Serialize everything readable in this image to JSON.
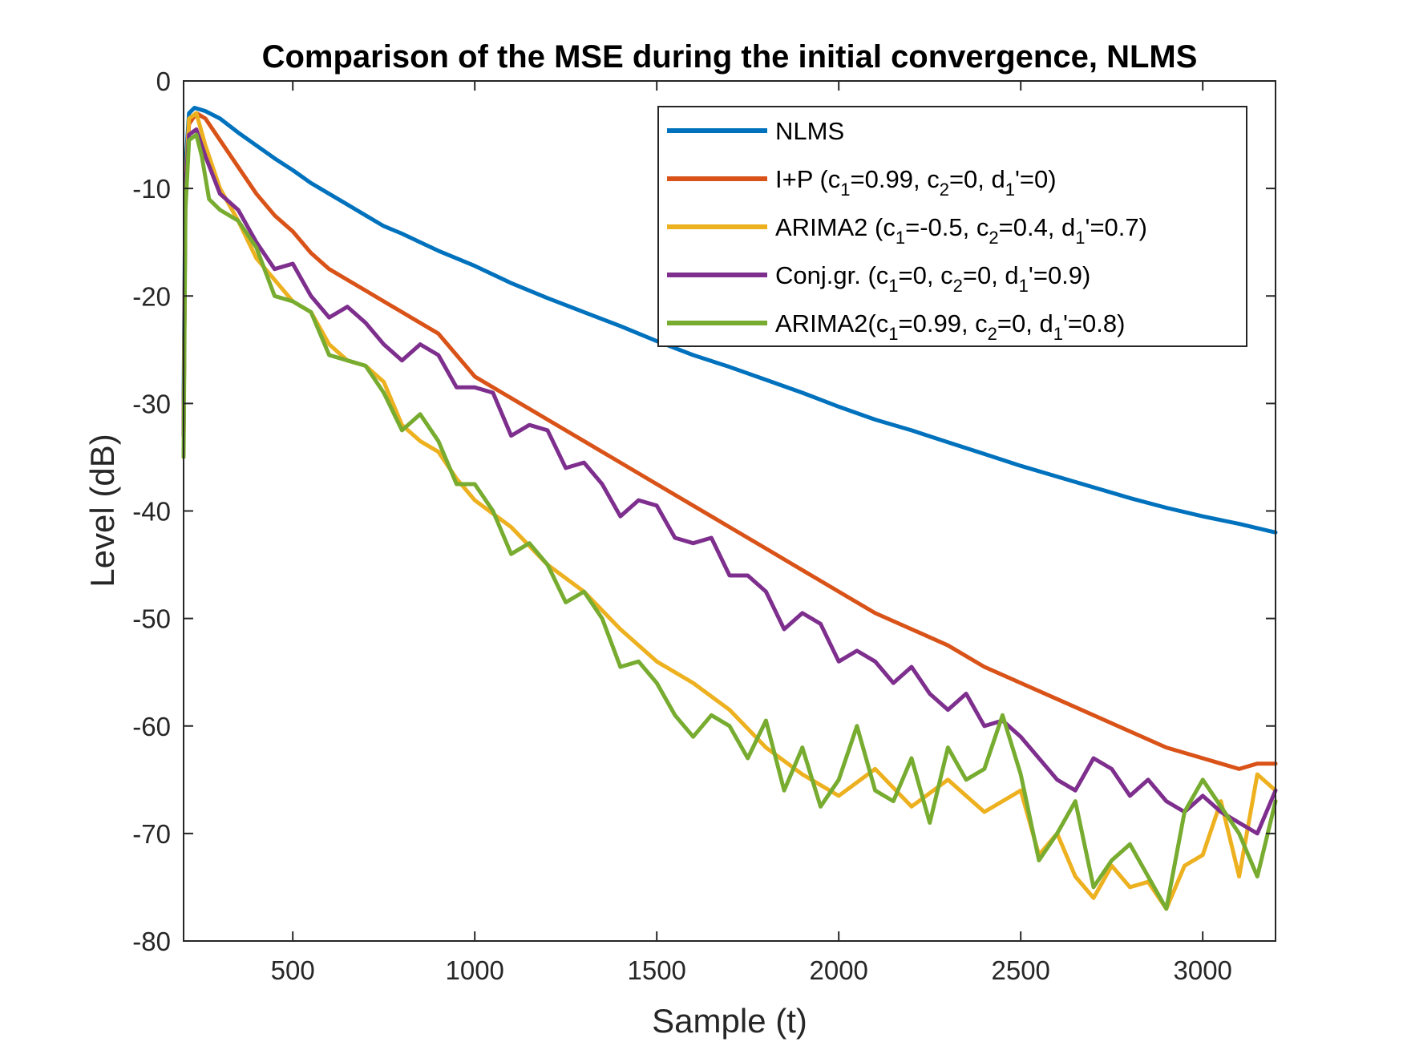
{
  "chart_data": {
    "type": "line",
    "title": "Comparison of the MSE during the initial convergence, NLMS",
    "xlabel": "Sample (t)",
    "ylabel": "Level (dB)",
    "xlim": [
      200,
      3200
    ],
    "ylim": [
      -80,
      0
    ],
    "xticks": [
      500,
      1000,
      1500,
      2000,
      2500,
      3000
    ],
    "xtick_labels": [
      "500",
      "1000",
      "1500",
      "2000",
      "2500",
      "3000"
    ],
    "yticks": [
      0,
      -10,
      -20,
      -30,
      -40,
      -50,
      -60,
      -70,
      -80
    ],
    "ytick_labels": [
      "0",
      "-10",
      "-20",
      "-30",
      "-40",
      "-50",
      "-60",
      "-70",
      "-80"
    ],
    "grid": false,
    "legend_position": "top-right",
    "series": [
      {
        "name": "NLMS",
        "legend_parts": [
          {
            "t": "NLMS"
          }
        ],
        "color": "#0072BD",
        "x": [
          200,
          205,
          215,
          230,
          260,
          300,
          350,
          400,
          450,
          500,
          550,
          600,
          650,
          700,
          750,
          800,
          850,
          900,
          950,
          1000,
          1100,
          1200,
          1300,
          1400,
          1500,
          1600,
          1700,
          1800,
          1900,
          2000,
          2100,
          2200,
          2300,
          2400,
          2500,
          2600,
          2700,
          2800,
          2900,
          3000,
          3100,
          3200
        ],
        "values": [
          -30,
          -8,
          -3,
          -2.5,
          -2.8,
          -3.5,
          -4.8,
          -6,
          -7.2,
          -8.3,
          -9.5,
          -10.5,
          -11.5,
          -12.5,
          -13.5,
          -14.2,
          -15,
          -15.8,
          -16.5,
          -17.2,
          -18.8,
          -20.2,
          -21.5,
          -22.8,
          -24.2,
          -25.5,
          -26.6,
          -27.8,
          -29,
          -30.3,
          -31.5,
          -32.5,
          -33.6,
          -34.7,
          -35.8,
          -36.8,
          -37.8,
          -38.8,
          -39.7,
          -40.5,
          -41.2,
          -42
        ]
      },
      {
        "name": "I+P (c1=0.99, c2=0, d1'=0)",
        "legend_parts": [
          {
            "t": "I+P (c"
          },
          {
            "t": "1",
            "sub": true
          },
          {
            "t": "=0.99, c"
          },
          {
            "t": "2",
            "sub": true
          },
          {
            "t": "=0, d"
          },
          {
            "t": "1",
            "sub": true
          },
          {
            "t": "'=0)"
          }
        ],
        "color": "#D95319",
        "x": [
          200,
          205,
          215,
          235,
          260,
          300,
          350,
          400,
          450,
          500,
          550,
          600,
          650,
          700,
          750,
          800,
          850,
          900,
          950,
          1000,
          1100,
          1200,
          1300,
          1400,
          1500,
          1600,
          1700,
          1800,
          1900,
          2000,
          2100,
          2200,
          2300,
          2400,
          2500,
          2600,
          2700,
          2800,
          2900,
          3000,
          3050,
          3100,
          3150,
          3200
        ],
        "values": [
          -33,
          -10,
          -4,
          -3,
          -3.5,
          -5.5,
          -8,
          -10.5,
          -12.5,
          -14,
          -16,
          -17.5,
          -18.5,
          -19.5,
          -20.5,
          -21.5,
          -22.5,
          -23.5,
          -25.5,
          -27.5,
          -29.5,
          -31.5,
          -33.5,
          -35.5,
          -37.5,
          -39.5,
          -41.5,
          -43.5,
          -45.5,
          -47.5,
          -49.5,
          -51,
          -52.5,
          -54.5,
          -56,
          -57.5,
          -59,
          -60.5,
          -62,
          -63,
          -63.5,
          -64,
          -63.5,
          -63.5
        ]
      },
      {
        "name": "ARIMA2 (c1=-0.5, c2=0.4, d1'=0.7)",
        "legend_parts": [
          {
            "t": "ARIMA2 (c"
          },
          {
            "t": "1",
            "sub": true
          },
          {
            "t": "=-0.5, c"
          },
          {
            "t": "2",
            "sub": true
          },
          {
            "t": "=0.4, d"
          },
          {
            "t": "1",
            "sub": true
          },
          {
            "t": "'=0.7)"
          }
        ],
        "color": "#EDB120",
        "x": [
          200,
          205,
          215,
          235,
          260,
          300,
          350,
          400,
          450,
          500,
          550,
          600,
          650,
          700,
          750,
          800,
          850,
          900,
          950,
          1000,
          1100,
          1200,
          1300,
          1400,
          1500,
          1600,
          1700,
          1800,
          1900,
          2000,
          2100,
          2200,
          2300,
          2400,
          2500,
          2550,
          2600,
          2650,
          2700,
          2750,
          2800,
          2850,
          2900,
          2950,
          3000,
          3050,
          3100,
          3150,
          3200
        ],
        "values": [
          -33,
          -10,
          -3.5,
          -3,
          -6,
          -10,
          -13,
          -16.5,
          -18.5,
          -20.5,
          -21.5,
          -24.5,
          -26,
          -26.5,
          -28,
          -32,
          -33.5,
          -34.5,
          -37,
          -39,
          -41.5,
          -45,
          -47.5,
          -51,
          -54,
          -56,
          -58.5,
          -62,
          -64.5,
          -66.5,
          -64,
          -67.5,
          -65,
          -68,
          -66,
          -72,
          -70,
          -74,
          -76,
          -73,
          -75,
          -74.5,
          -77,
          -73,
          -72,
          -67,
          -74,
          -64.5,
          -66
        ]
      },
      {
        "name": "Conj.gr. (c1=0, c2=0, d1'=0.9)",
        "legend_parts": [
          {
            "t": "Conj.gr. (c"
          },
          {
            "t": "1",
            "sub": true
          },
          {
            "t": "=0, c"
          },
          {
            "t": "2",
            "sub": true
          },
          {
            "t": "=0, d"
          },
          {
            "t": "1",
            "sub": true
          },
          {
            "t": "'=0.9)"
          }
        ],
        "color": "#7E2F8E",
        "x": [
          200,
          205,
          215,
          235,
          260,
          300,
          350,
          400,
          450,
          500,
          550,
          600,
          650,
          700,
          750,
          800,
          850,
          900,
          950,
          1000,
          1050,
          1100,
          1150,
          1200,
          1250,
          1300,
          1350,
          1400,
          1450,
          1500,
          1550,
          1600,
          1650,
          1700,
          1750,
          1800,
          1850,
          1900,
          1950,
          2000,
          2050,
          2100,
          2150,
          2200,
          2250,
          2300,
          2350,
          2400,
          2450,
          2500,
          2550,
          2600,
          2650,
          2700,
          2750,
          2800,
          2850,
          2900,
          2950,
          3000,
          3050,
          3100,
          3150,
          3200
        ],
        "values": [
          -33,
          -10,
          -5,
          -4.5,
          -7,
          -10.5,
          -12,
          -15,
          -17.5,
          -17,
          -20,
          -22,
          -21,
          -22.5,
          -24.5,
          -26,
          -24.5,
          -25.5,
          -28.5,
          -28.5,
          -29,
          -33,
          -32,
          -32.5,
          -36,
          -35.5,
          -37.5,
          -40.5,
          -39,
          -39.5,
          -42.5,
          -43,
          -42.5,
          -46,
          -46,
          -47.5,
          -51,
          -49.5,
          -50.5,
          -54,
          -53,
          -54,
          -56,
          -54.5,
          -57,
          -58.5,
          -57,
          -60,
          -59.5,
          -61,
          -63,
          -65,
          -66,
          -63,
          -64,
          -66.5,
          -65,
          -67,
          -68,
          -66.5,
          -68,
          -69,
          -70,
          -66
        ]
      },
      {
        "name": "ARIMA2(c1=0.99, c2=0, d1'=0.8)",
        "legend_parts": [
          {
            "t": "ARIMA2(c"
          },
          {
            "t": "1",
            "sub": true
          },
          {
            "t": "=0.99, c"
          },
          {
            "t": "2",
            "sub": true
          },
          {
            "t": "=0, d"
          },
          {
            "t": "1",
            "sub": true
          },
          {
            "t": "'=0.8)"
          }
        ],
        "color": "#77AC30",
        "x": [
          200,
          205,
          215,
          235,
          250,
          270,
          300,
          350,
          400,
          450,
          500,
          550,
          600,
          650,
          700,
          750,
          800,
          850,
          900,
          950,
          1000,
          1050,
          1100,
          1150,
          1200,
          1250,
          1300,
          1350,
          1400,
          1450,
          1500,
          1550,
          1600,
          1650,
          1700,
          1750,
          1800,
          1850,
          1900,
          1950,
          2000,
          2050,
          2100,
          2150,
          2200,
          2250,
          2300,
          2350,
          2400,
          2450,
          2500,
          2550,
          2600,
          2650,
          2700,
          2750,
          2800,
          2850,
          2900,
          2950,
          3000,
          3050,
          3100,
          3150,
          3200
        ],
        "values": [
          -35,
          -12,
          -5.5,
          -5,
          -7,
          -11,
          -12,
          -13,
          -15.5,
          -20,
          -20.5,
          -21.5,
          -25.5,
          -26,
          -26.5,
          -29,
          -32.5,
          -31,
          -33.5,
          -37.5,
          -37.5,
          -40,
          -44,
          -43,
          -45,
          -48.5,
          -47.5,
          -50,
          -54.5,
          -54,
          -56,
          -59,
          -61,
          -59,
          -60,
          -63,
          -59.5,
          -66,
          -62,
          -67.5,
          -65,
          -60,
          -66,
          -67,
          -63,
          -69,
          -62,
          -65,
          -64,
          -59,
          -64.5,
          -72.5,
          -70,
          -67,
          -75,
          -72.5,
          -71,
          -74,
          -77,
          -68,
          -65,
          -67.5,
          -70,
          -74,
          -67
        ]
      }
    ]
  }
}
